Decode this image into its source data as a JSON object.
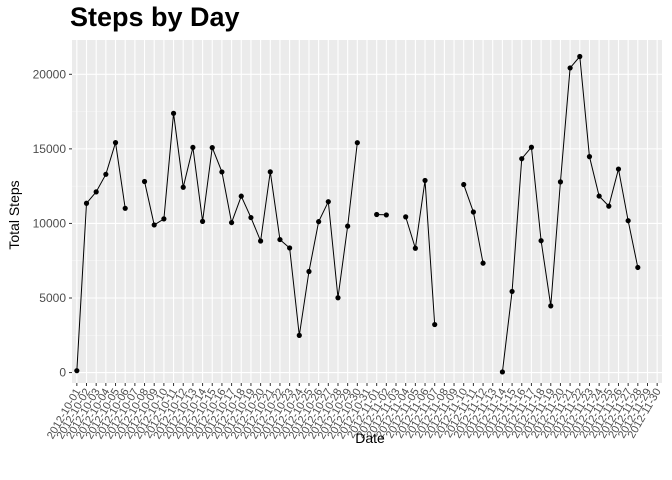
{
  "chart_data": {
    "type": "line",
    "title": "Steps by Day",
    "xlabel": "Date",
    "ylabel": "Total Steps",
    "ylim": [
      -700,
      22300
    ],
    "yticks": [
      0,
      5000,
      10000,
      15000,
      20000
    ],
    "ytick_labels": [
      "0",
      "5000",
      "10000",
      "15000",
      "20000"
    ],
    "grid": true,
    "legend": "none",
    "x": [
      "2012-10-01",
      "2012-10-02",
      "2012-10-03",
      "2012-10-04",
      "2012-10-05",
      "2012-10-06",
      "2012-10-07",
      "2012-10-08",
      "2012-10-09",
      "2012-10-10",
      "2012-10-11",
      "2012-10-12",
      "2012-10-13",
      "2012-10-14",
      "2012-10-15",
      "2012-10-16",
      "2012-10-17",
      "2012-10-18",
      "2012-10-19",
      "2012-10-20",
      "2012-10-21",
      "2012-10-22",
      "2012-10-23",
      "2012-10-24",
      "2012-10-25",
      "2012-10-26",
      "2012-10-27",
      "2012-10-28",
      "2012-10-29",
      "2012-10-30",
      "2012-10-31",
      "2012-11-01",
      "2012-11-02",
      "2012-11-03",
      "2012-11-04",
      "2012-11-05",
      "2012-11-06",
      "2012-11-07",
      "2012-11-08",
      "2012-11-09",
      "2012-11-10",
      "2012-11-11",
      "2012-11-12",
      "2012-11-13",
      "2012-11-14",
      "2012-11-15",
      "2012-11-16",
      "2012-11-17",
      "2012-11-18",
      "2012-11-19",
      "2012-11-20",
      "2012-11-21",
      "2012-11-22",
      "2012-11-23",
      "2012-11-24",
      "2012-11-25",
      "2012-11-26",
      "2012-11-27",
      "2012-11-28",
      "2012-11-29",
      "2012-11-30"
    ],
    "series": [
      {
        "values": [
          126,
          11352,
          12116,
          13294,
          15420,
          11015,
          null,
          12811,
          9900,
          10304,
          17382,
          12426,
          15098,
          10139,
          15084,
          13452,
          10056,
          11829,
          10395,
          8821,
          13460,
          8918,
          8355,
          2492,
          6778,
          10119,
          11458,
          5018,
          9819,
          15414,
          null,
          10600,
          10571,
          null,
          10439,
          8334,
          12883,
          3219,
          null,
          null,
          12608,
          10765,
          7336,
          null,
          41,
          5441,
          14339,
          15110,
          8841,
          4472,
          12787,
          20427,
          21194,
          14478,
          11834,
          11162,
          13646,
          10183,
          7047,
          null,
          null
        ]
      }
    ],
    "colors": {
      "panel": "#ebebeb",
      "grid_major": "#ffffff",
      "line": "#000000",
      "point": "#000000"
    }
  }
}
